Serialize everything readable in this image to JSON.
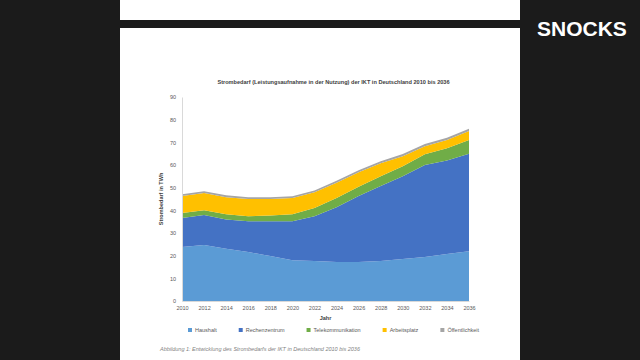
{
  "chart_data": {
    "type": "stacked_area",
    "title": "Strombedarf (Leistungsaufnahme in der Nutzung) der IKT in Deutschland 2010 bis 2036",
    "x_label": "Jahr",
    "y_label": "Strombedarf in TWh",
    "x": [
      2010,
      2012,
      2014,
      2016,
      2018,
      2020,
      2022,
      2024,
      2026,
      2028,
      2030,
      2032,
      2034,
      2036
    ],
    "series": [
      {
        "name": "Haushalt",
        "color": "#5b9bd5",
        "values": [
          23.8,
          24.7,
          23,
          21.6,
          19.8,
          18,
          17.6,
          17.2,
          17.2,
          17.6,
          18.5,
          19.4,
          20.7,
          22
        ]
      },
      {
        "name": "Rechenzentrum",
        "color": "#4472c4",
        "values": [
          12.8,
          13.2,
          13,
          13.6,
          15.4,
          17.2,
          19.8,
          24.2,
          29.1,
          33.1,
          36.5,
          40.6,
          41.3,
          43
        ]
      },
      {
        "name": "Telekommunikation",
        "color": "#70ad47",
        "values": [
          2.2,
          2.1,
          2.3,
          2.2,
          2.5,
          3.1,
          3.6,
          4,
          4.1,
          4.3,
          4.5,
          4.7,
          5.4,
          6
        ]
      },
      {
        "name": "Arbeitsplatz",
        "color": "#ffc000",
        "values": [
          7.5,
          7.6,
          7.5,
          7.6,
          7.3,
          7.1,
          7,
          6.8,
          6.4,
          5.8,
          4.4,
          3.6,
          3.6,
          4
        ]
      },
      {
        "name": "Öffentlichkeit",
        "color": "#a5a5a5",
        "values": [
          0.8,
          0.8,
          0.8,
          0.8,
          0.8,
          0.8,
          0.8,
          0.9,
          0.9,
          0.9,
          0.9,
          1,
          1,
          1
        ]
      }
    ],
    "stacked": true,
    "grid": false,
    "legend": "bottom",
    "xlim": [
      2010,
      2036
    ],
    "xticks": [
      2010,
      2012,
      2014,
      2016,
      2018,
      2020,
      2022,
      2024,
      2026,
      2028,
      2030,
      2032,
      2034,
      2036
    ],
    "ylim": [
      0,
      90
    ],
    "yticks": [
      0,
      10,
      20,
      30,
      40,
      50,
      60,
      70,
      80,
      90
    ],
    "annotations": [
      {
        "text": "Abbildung 1: Entwicklung des Strombedarfs der IKT in Deutschland 2010 bis 2036"
      },
      {
        "text": "SNOCKS"
      }
    ]
  }
}
